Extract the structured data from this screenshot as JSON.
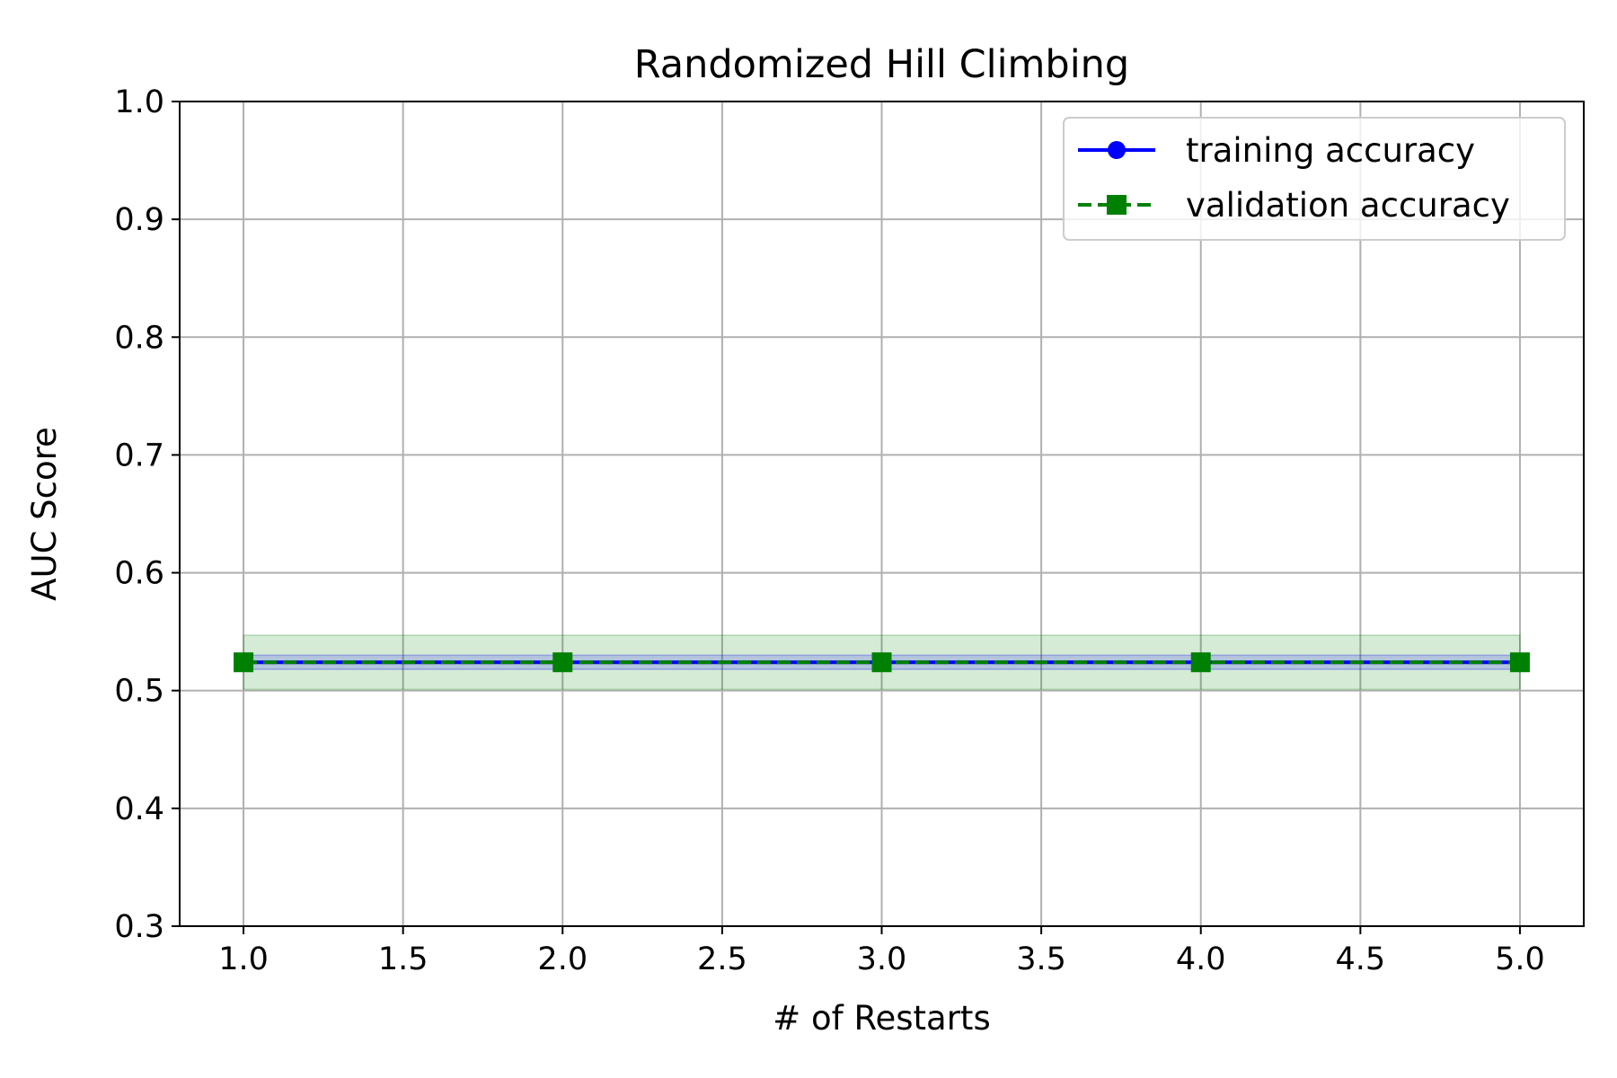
{
  "chart_data": {
    "type": "line",
    "title": "Randomized Hill Climbing",
    "xlabel": "# of Restarts",
    "ylabel": "AUC Score",
    "x": [
      1.0,
      2.0,
      3.0,
      4.0,
      5.0
    ],
    "xlim": [
      0.8,
      5.2
    ],
    "ylim": [
      0.3,
      1.0
    ],
    "xticks": [
      1.0,
      1.5,
      2.0,
      2.5,
      3.0,
      3.5,
      4.0,
      4.5,
      5.0
    ],
    "xtick_labels": [
      "1.0",
      "1.5",
      "2.0",
      "2.5",
      "3.0",
      "3.5",
      "4.0",
      "4.5",
      "5.0"
    ],
    "yticks": [
      0.3,
      0.4,
      0.5,
      0.6,
      0.7,
      0.8,
      0.9,
      1.0
    ],
    "ytick_labels": [
      "0.3",
      "0.4",
      "0.5",
      "0.6",
      "0.7",
      "0.8",
      "0.9",
      "1.0"
    ],
    "grid": true,
    "legend_position": "top-right",
    "series": [
      {
        "name": "training accuracy",
        "values": [
          0.524,
          0.524,
          0.524,
          0.524,
          0.524
        ],
        "band": [
          [
            0.518,
            0.53
          ],
          [
            0.518,
            0.53
          ],
          [
            0.518,
            0.53
          ],
          [
            0.518,
            0.53
          ],
          [
            0.518,
            0.53
          ]
        ],
        "color": "#0000ff",
        "band_color": "#0000ff",
        "line_style": "solid",
        "marker": "circle"
      },
      {
        "name": "validation accuracy",
        "values": [
          0.524,
          0.524,
          0.524,
          0.524,
          0.524
        ],
        "band": [
          [
            0.501,
            0.547
          ],
          [
            0.501,
            0.547
          ],
          [
            0.501,
            0.547
          ],
          [
            0.501,
            0.547
          ],
          [
            0.501,
            0.547
          ]
        ],
        "color": "#008000",
        "band_color": "#008000",
        "line_style": "dashed",
        "marker": "square"
      }
    ]
  }
}
